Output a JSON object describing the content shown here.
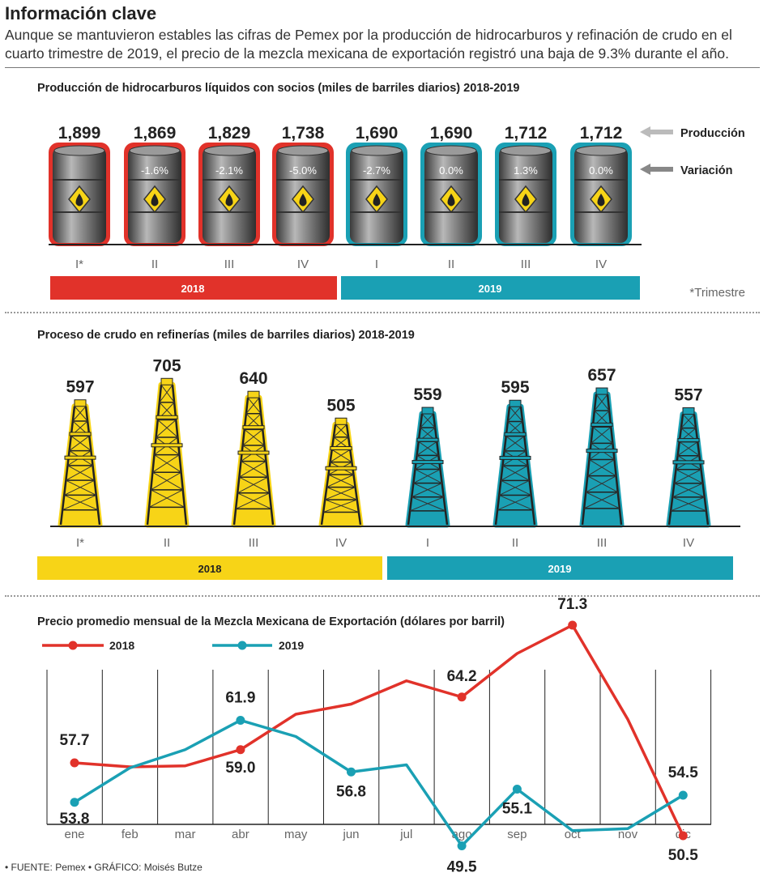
{
  "header": {
    "title": "Información clave",
    "subtitle": "Aunque se mantuvieron estables las cifras de Pemex por la producción de hidrocarburos y refinación de crudo en el cuarto trimestre de 2019, el precio de la mezcla mexicana de exportación registró una baja de 9.3% durante el año."
  },
  "legend_barrels": {
    "produccion": "Producción",
    "variacion": "Variación"
  },
  "footnote": "*Trimestre",
  "footer": "• FUENTE: Pemex • GRÁFICO: Moisés Butze",
  "colors": {
    "red": "#e1322a",
    "teal": "#1aa0b4",
    "yellow": "#f7d417",
    "dark": "#222222"
  },
  "chart_data": [
    {
      "type": "bar",
      "title": "Producción de hidrocarburos líquidos con socios (miles de barriles diarios) 2018-2019",
      "categories": [
        "I*",
        "II",
        "III",
        "IV",
        "I",
        "II",
        "III",
        "IV"
      ],
      "years": [
        {
          "label": "2018",
          "span": 4
        },
        {
          "label": "2019",
          "span": 4
        }
      ],
      "series": [
        {
          "name": "Producción",
          "values": [
            "1,899",
            "1,869",
            "1,829",
            "1,738",
            "1,690",
            "1,690",
            "1,712",
            "1,712"
          ]
        },
        {
          "name": "Variación",
          "values": [
            "",
            "-1.6%",
            "-2.1%",
            "-5.0%",
            "-2.7%",
            "0.0%",
            "1.3%",
            "0.0%"
          ]
        }
      ]
    },
    {
      "type": "bar",
      "title": "Proceso de crudo en refinerías (miles de barriles diarios) 2018-2019",
      "categories": [
        "I*",
        "II",
        "III",
        "IV",
        "I",
        "II",
        "III",
        "IV"
      ],
      "years": [
        {
          "label": "2018",
          "span": 4
        },
        {
          "label": "2019",
          "span": 4
        }
      ],
      "values": [
        597,
        705,
        640,
        505,
        559,
        595,
        657,
        557
      ]
    },
    {
      "type": "line",
      "title": "Precio promedio mensual de la Mezcla Mexicana de Exportación (dólares por barril)",
      "categories": [
        "ene",
        "feb",
        "mar",
        "abr",
        "may",
        "jun",
        "jul",
        "ago",
        "sep",
        "oct",
        "nov",
        "dic"
      ],
      "ylim": [
        45,
        80
      ],
      "series": [
        {
          "name": "2018",
          "values": [
            57.7,
            57.3,
            57.4,
            59.0,
            62.5,
            63.5,
            65.8,
            64.2,
            68.5,
            71.3,
            62.0,
            50.5
          ],
          "labels": [
            "57.7",
            "",
            "",
            "59.0",
            "",
            "",
            "",
            "64.2",
            "",
            "71.3",
            "",
            "50.5"
          ]
        },
        {
          "name": "2019",
          "values": [
            53.8,
            57.2,
            59.0,
            61.9,
            60.3,
            56.8,
            57.5,
            49.5,
            55.1,
            51.0,
            51.2,
            54.5
          ],
          "labels": [
            "53.8",
            "",
            "",
            "61.9",
            "",
            "56.8",
            "",
            "49.5",
            "55.1",
            "",
            "",
            "54.5"
          ]
        }
      ]
    }
  ]
}
